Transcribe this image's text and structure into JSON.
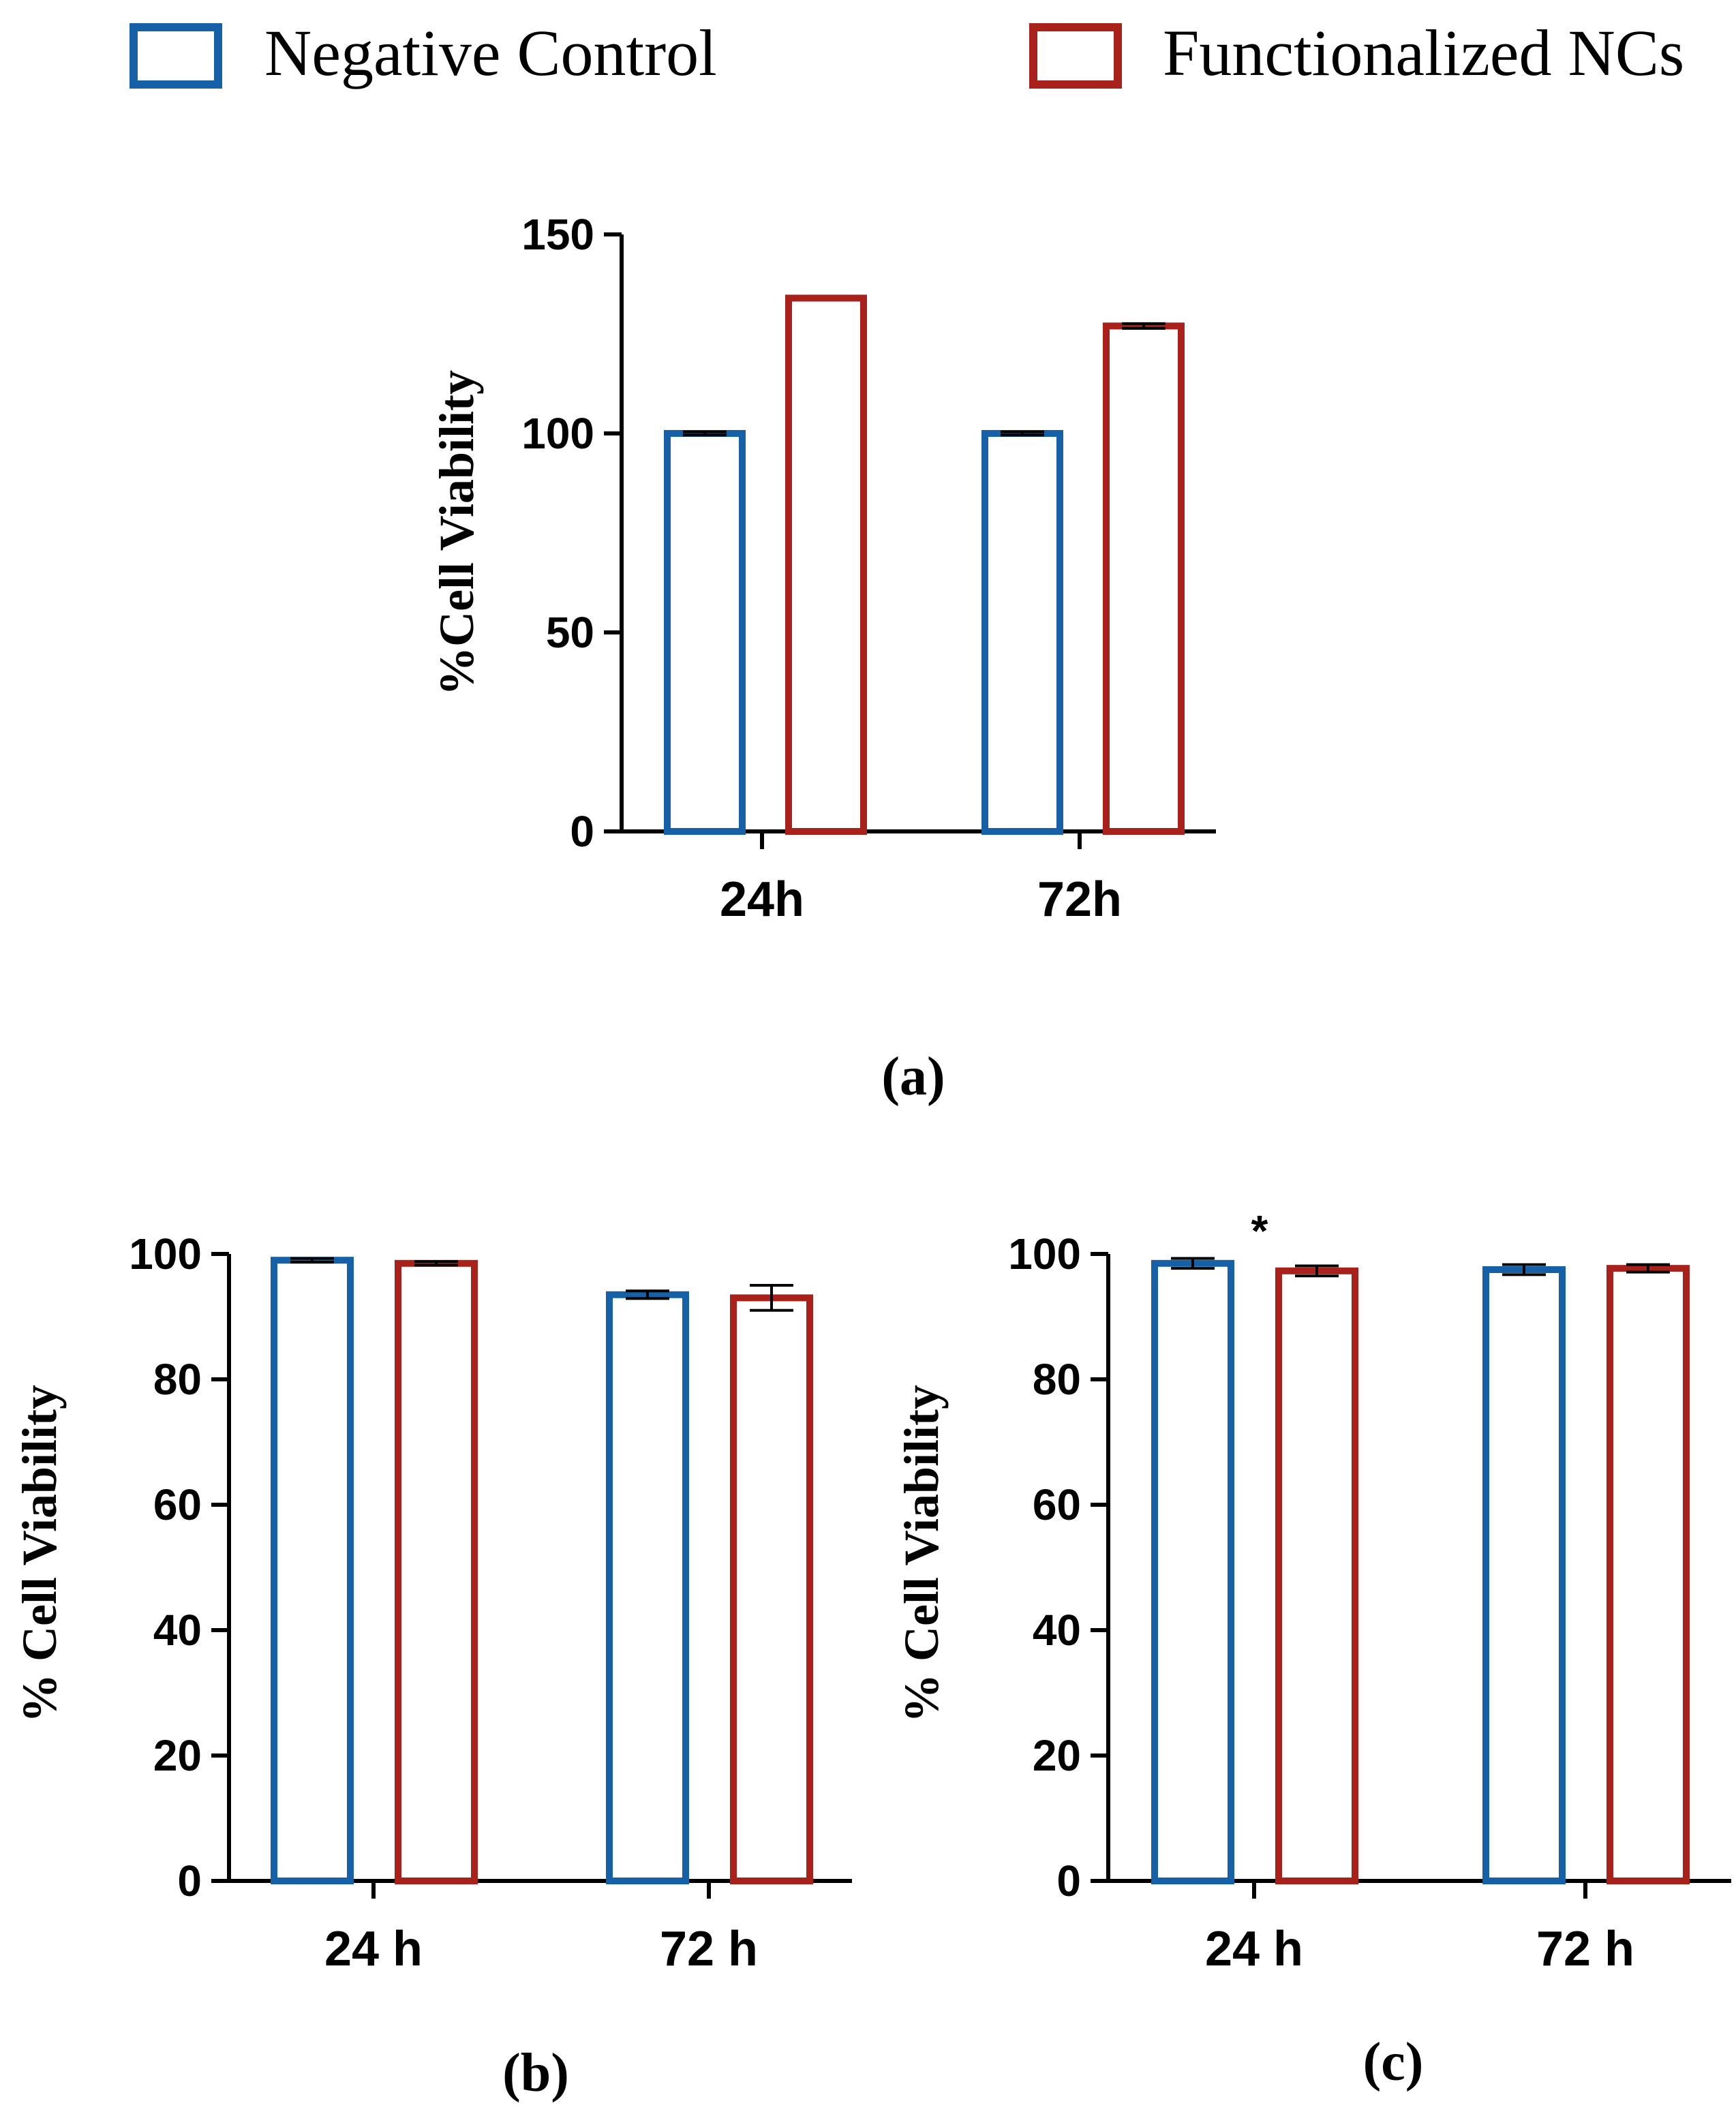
{
  "legend": {
    "items": [
      {
        "label": "Negative Control",
        "color": "#1560A6"
      },
      {
        "label": "Functionalized NCs",
        "color": "#A8211B"
      }
    ]
  },
  "chart_data": [
    {
      "type": "bar",
      "panel": "(a)",
      "categories": [
        "24h",
        "72h"
      ],
      "series": [
        {
          "name": "Negative Control",
          "values": [
            100,
            100
          ],
          "errors": [
            0.4,
            0.4
          ]
        },
        {
          "name": "Functionalized NCs",
          "values": [
            134,
            127
          ],
          "errors": [
            0,
            0.6
          ]
        }
      ],
      "ylabel": "%Cell Viability",
      "xlabel": "",
      "ylim": [
        0,
        150
      ],
      "yticks": [
        0,
        50,
        100,
        150
      ],
      "annotations": []
    },
    {
      "type": "bar",
      "panel": "(b)",
      "categories": [
        "24 h",
        "72 h"
      ],
      "series": [
        {
          "name": "Negative Control",
          "values": [
            99,
            93.5
          ],
          "errors": [
            0.3,
            0.6
          ]
        },
        {
          "name": "Functionalized NCs",
          "values": [
            98.5,
            93
          ],
          "errors": [
            0.3,
            2
          ]
        }
      ],
      "ylabel": "% Cell Viability",
      "xlabel": "",
      "ylim": [
        0,
        100
      ],
      "yticks": [
        0,
        20,
        40,
        60,
        80,
        100
      ],
      "annotations": []
    },
    {
      "type": "bar",
      "panel": "(c)",
      "categories": [
        "24 h",
        "72 h"
      ],
      "series": [
        {
          "name": "Negative Control",
          "values": [
            98.5,
            97.5
          ],
          "errors": [
            0.8,
            0.8
          ]
        },
        {
          "name": "Functionalized NCs",
          "values": [
            97.3,
            97.7
          ],
          "errors": [
            0.8,
            0.6
          ]
        }
      ],
      "ylabel": "% Cell Viability",
      "xlabel": "",
      "ylim": [
        0,
        100
      ],
      "yticks": [
        0,
        20,
        40,
        60,
        80,
        100
      ],
      "annotations": [
        {
          "text": "*",
          "category": "24 h"
        }
      ]
    }
  ]
}
